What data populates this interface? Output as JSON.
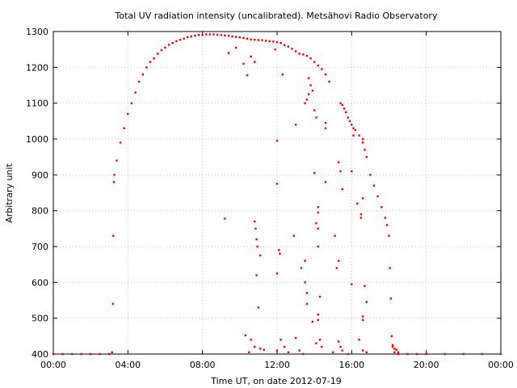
{
  "chart_data": {
    "type": "scatter",
    "title": "Total UV radiation intensity (uncalibrated). Metsähovi Radio Observatory",
    "xlabel": "Time UT, on date 2012-07-19",
    "ylabel": "Arbitrary unit",
    "x_unit": "hours UT",
    "xlim": [
      0,
      24
    ],
    "ylim": [
      400,
      1300
    ],
    "x_ticks": [
      {
        "value": 0,
        "label": "00:00"
      },
      {
        "value": 4,
        "label": "04:00"
      },
      {
        "value": 8,
        "label": "08:00"
      },
      {
        "value": 12,
        "label": "12:00"
      },
      {
        "value": 16,
        "label": "16:00"
      },
      {
        "value": 20,
        "label": "20:00"
      },
      {
        "value": 24,
        "label": "00:00"
      }
    ],
    "y_ticks": [
      {
        "value": 400,
        "label": "400"
      },
      {
        "value": 500,
        "label": "500"
      },
      {
        "value": 600,
        "label": "600"
      },
      {
        "value": 700,
        "label": "700"
      },
      {
        "value": 800,
        "label": "800"
      },
      {
        "value": 900,
        "label": "900"
      },
      {
        "value": 1000,
        "label": "1000"
      },
      {
        "value": 1100,
        "label": "1100"
      },
      {
        "value": 1200,
        "label": "1200"
      },
      {
        "value": 1300,
        "label": "1300"
      }
    ],
    "grid": true,
    "color": "#ee0000",
    "series": [
      {
        "points": [
          [
            0.0,
            400
          ],
          [
            0.5,
            400
          ],
          [
            1.0,
            400
          ],
          [
            1.5,
            400
          ],
          [
            2.0,
            400
          ],
          [
            2.5,
            400
          ],
          [
            3.0,
            400
          ],
          [
            3.15,
            405
          ],
          [
            3.2,
            540
          ],
          [
            3.22,
            730
          ],
          [
            3.25,
            880
          ],
          [
            3.27,
            900
          ],
          [
            3.4,
            940
          ],
          [
            3.6,
            990
          ],
          [
            3.8,
            1030
          ],
          [
            4.0,
            1070
          ],
          [
            4.2,
            1100
          ],
          [
            4.4,
            1130
          ],
          [
            4.6,
            1160
          ],
          [
            4.8,
            1180
          ],
          [
            5.0,
            1200
          ],
          [
            5.2,
            1215
          ],
          [
            5.4,
            1225
          ],
          [
            5.6,
            1238
          ],
          [
            5.8,
            1248
          ],
          [
            6.0,
            1255
          ],
          [
            6.2,
            1263
          ],
          [
            6.4,
            1268
          ],
          [
            6.6,
            1273
          ],
          [
            6.8,
            1277
          ],
          [
            7.0,
            1280
          ],
          [
            7.2,
            1284
          ],
          [
            7.4,
            1286
          ],
          [
            7.6,
            1288
          ],
          [
            7.8,
            1290
          ],
          [
            8.0,
            1290
          ],
          [
            8.2,
            1292
          ],
          [
            8.4,
            1292
          ],
          [
            8.6,
            1292
          ],
          [
            8.8,
            1291
          ],
          [
            9.0,
            1290
          ],
          [
            9.2,
            1289
          ],
          [
            9.4,
            1288
          ],
          [
            9.6,
            1286
          ],
          [
            9.8,
            1285
          ],
          [
            10.0,
            1284
          ],
          [
            10.2,
            1282
          ],
          [
            10.4,
            1280
          ],
          [
            10.6,
            1278
          ],
          [
            10.8,
            1277
          ],
          [
            11.0,
            1276
          ],
          [
            11.2,
            1276
          ],
          [
            11.4,
            1274
          ],
          [
            11.6,
            1273
          ],
          [
            11.8,
            1272
          ],
          [
            12.0,
            1270
          ],
          [
            12.2,
            1268
          ],
          [
            12.4,
            1262
          ],
          [
            12.6,
            1258
          ],
          [
            12.8,
            1252
          ],
          [
            13.0,
            1245
          ],
          [
            13.2,
            1238
          ],
          [
            13.4,
            1236
          ],
          [
            13.6,
            1232
          ],
          [
            13.8,
            1225
          ],
          [
            14.0,
            1215
          ],
          [
            14.2,
            1205
          ],
          [
            14.4,
            1195
          ],
          [
            14.6,
            1180
          ],
          [
            14.8,
            1160
          ],
          [
            15.4,
            1100
          ],
          [
            15.5,
            1095
          ],
          [
            15.6,
            1085
          ],
          [
            15.7,
            1075
          ],
          [
            15.8,
            1060
          ],
          [
            15.9,
            1050
          ],
          [
            16.0,
            1040
          ],
          [
            16.1,
            1030
          ],
          [
            16.2,
            1025
          ],
          [
            16.4,
            1010
          ],
          [
            16.6,
            990
          ],
          [
            16.8,
            950
          ],
          [
            17.0,
            900
          ],
          [
            17.2,
            870
          ],
          [
            17.4,
            840
          ],
          [
            17.6,
            810
          ],
          [
            17.8,
            780
          ],
          [
            17.9,
            760
          ],
          [
            18.0,
            730
          ],
          [
            18.05,
            640
          ],
          [
            18.1,
            555
          ],
          [
            18.15,
            450
          ],
          [
            18.2,
            420
          ],
          [
            18.3,
            405
          ],
          [
            18.5,
            400
          ],
          [
            19.0,
            400
          ],
          [
            19.5,
            400
          ],
          [
            20.0,
            400
          ],
          [
            21.0,
            400
          ],
          [
            22.0,
            400
          ],
          [
            23.0,
            400
          ],
          [
            24.0,
            400
          ],
          [
            9.2,
            778
          ],
          [
            9.4,
            1240
          ],
          [
            9.8,
            1255
          ],
          [
            10.2,
            1210
          ],
          [
            10.4,
            1178
          ],
          [
            10.6,
            1230
          ],
          [
            10.8,
            1215
          ],
          [
            10.8,
            770
          ],
          [
            10.85,
            750
          ],
          [
            10.9,
            720
          ],
          [
            10.95,
            700
          ],
          [
            11.1,
            675
          ],
          [
            10.9,
            620
          ],
          [
            11.0,
            530
          ],
          [
            10.3,
            452
          ],
          [
            10.6,
            440
          ],
          [
            10.8,
            420
          ],
          [
            11.1,
            415
          ],
          [
            10.5,
            405
          ],
          [
            11.3,
            412
          ],
          [
            11.9,
            1250
          ],
          [
            12.0,
            995
          ],
          [
            12.0,
            875
          ],
          [
            12.1,
            690
          ],
          [
            12.15,
            680
          ],
          [
            12.0,
            625
          ],
          [
            12.3,
            1180
          ],
          [
            12.2,
            440
          ],
          [
            12.4,
            420
          ],
          [
            12.0,
            410
          ],
          [
            12.6,
            405
          ],
          [
            13.0,
            1040
          ],
          [
            12.9,
            730
          ],
          [
            13.0,
            445
          ],
          [
            13.2,
            410
          ],
          [
            13.4,
            400
          ],
          [
            13.3,
            640
          ],
          [
            13.5,
            660
          ],
          [
            13.6,
            570
          ],
          [
            13.5,
            600
          ],
          [
            13.9,
            490
          ],
          [
            13.6,
            540
          ],
          [
            13.5,
            1100
          ],
          [
            13.6,
            1110
          ],
          [
            13.7,
            1125
          ],
          [
            13.7,
            1170
          ],
          [
            13.8,
            1150
          ],
          [
            13.9,
            1135
          ],
          [
            14.0,
            1080
          ],
          [
            14.1,
            1060
          ],
          [
            14.0,
            905
          ],
          [
            14.2,
            810
          ],
          [
            14.2,
            795
          ],
          [
            14.1,
            765
          ],
          [
            14.2,
            750
          ],
          [
            14.2,
            700
          ],
          [
            14.3,
            560
          ],
          [
            14.2,
            510
          ],
          [
            14.2,
            495
          ],
          [
            14.3,
            440
          ],
          [
            14.1,
            430
          ],
          [
            14.4,
            420
          ],
          [
            14.6,
            1045
          ],
          [
            14.6,
            1030
          ],
          [
            14.6,
            880
          ],
          [
            15.1,
            730
          ],
          [
            15.2,
            640
          ],
          [
            15.3,
            660
          ],
          [
            15.3,
            935
          ],
          [
            15.4,
            910
          ],
          [
            15.5,
            860
          ],
          [
            15.0,
            405
          ],
          [
            15.3,
            435
          ],
          [
            15.4,
            420
          ],
          [
            15.5,
            410
          ],
          [
            15.8,
            400
          ],
          [
            16.0,
            910
          ],
          [
            16.1,
            1010
          ],
          [
            16.3,
            820
          ],
          [
            16.5,
            790
          ],
          [
            16.5,
            780
          ],
          [
            16.6,
            835
          ],
          [
            16.6,
            1000
          ],
          [
            16.7,
            970
          ],
          [
            16.0,
            595
          ],
          [
            16.6,
            505
          ],
          [
            16.6,
            495
          ],
          [
            16.7,
            590
          ],
          [
            16.8,
            545
          ],
          [
            16.4,
            440
          ],
          [
            16.6,
            410
          ],
          [
            16.8,
            405
          ],
          [
            18.2,
            425
          ],
          [
            18.3,
            415
          ],
          [
            18.4,
            412
          ],
          [
            18.5,
            405
          ]
        ]
      }
    ]
  }
}
